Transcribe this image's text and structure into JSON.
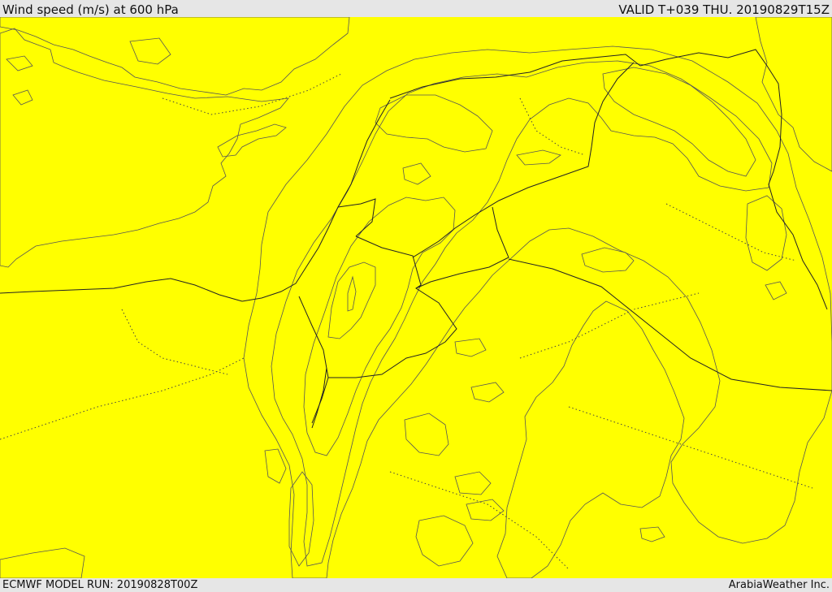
{
  "header": {
    "title": "Wind speed (m/s) at 600 hPa",
    "valid_time": "VALID T+039 THU. 20190829T15Z"
  },
  "footer": {
    "model_run": "ECMWF MODEL RUN: 20190828T00Z",
    "credit": "ArabiaWeather Inc."
  },
  "colors": {
    "background_field": "#ffff00",
    "sea": "#ffffff",
    "low_band": "#fde0a6",
    "band_1": "#ffd700",
    "band_2": "#ffc000",
    "band_3": "#ffa500",
    "band_4": "#ff8c00"
  }
}
